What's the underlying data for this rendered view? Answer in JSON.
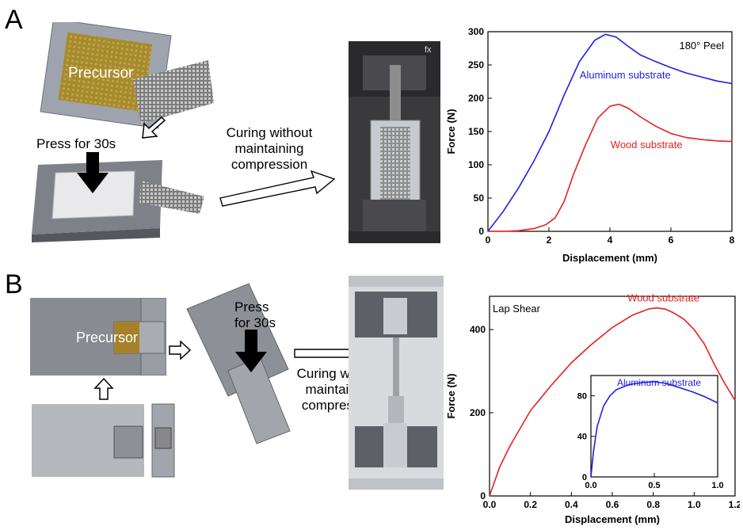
{
  "panel_a": {
    "letter": "A",
    "precursor_label": "Precursor",
    "press_label": "Press for 30s",
    "curing_line1": "Curing without",
    "curing_line2": "maintaining",
    "curing_line3": "compression",
    "photo_mark": "fx"
  },
  "panel_b": {
    "letter": "B",
    "precursor_label": "Precursor",
    "press_line1": "Press",
    "press_line2": "for 30s",
    "curing_line1": "Curing without",
    "curing_line2": "maintaining",
    "curing_line3": "compression"
  },
  "colors": {
    "blue": "#1f1fe6",
    "red": "#e62020"
  },
  "chart_data": [
    {
      "type": "line",
      "annotation": "180° Peel",
      "xlabel": "Displacement (mm)",
      "ylabel": "Force (N)",
      "xlim": [
        0,
        8
      ],
      "ylim": [
        0,
        300
      ],
      "xticks": [
        0,
        2,
        4,
        6,
        8
      ],
      "yticks": [
        0,
        50,
        100,
        150,
        200,
        250,
        300
      ],
      "series": [
        {
          "name": "Aluminum substrate",
          "color": "#1f1fe6",
          "x": [
            0,
            0.5,
            1,
            1.5,
            2,
            2.5,
            3,
            3.5,
            3.85,
            4.2,
            4.6,
            5,
            5.5,
            6,
            6.5,
            7,
            7.5,
            8
          ],
          "y": [
            0,
            30,
            65,
            105,
            150,
            205,
            255,
            287,
            296,
            292,
            278,
            265,
            255,
            246,
            238,
            232,
            226,
            222
          ]
        },
        {
          "name": "Wood substrate",
          "color": "#e62020",
          "x": [
            0,
            0.5,
            1,
            1.5,
            1.9,
            2.2,
            2.5,
            2.8,
            3.2,
            3.6,
            4,
            4.3,
            4.6,
            5,
            5.5,
            6,
            6.5,
            7,
            7.5,
            8
          ],
          "y": [
            0,
            0,
            1,
            4,
            10,
            20,
            45,
            85,
            130,
            170,
            188,
            191,
            185,
            172,
            158,
            147,
            141,
            138,
            136,
            135
          ]
        }
      ]
    },
    {
      "type": "line",
      "annotation": "Lap Shear",
      "xlabel": "Displacement (mm)",
      "ylabel": "Force (N)",
      "xlim": [
        0,
        1.2
      ],
      "ylim": [
        0,
        480
      ],
      "xticks": [
        "0.0",
        "0.2",
        "0.4",
        "0.6",
        "0.8",
        "1.0",
        "1.2"
      ],
      "yticks": [
        0,
        200,
        400
      ],
      "series": [
        {
          "name": "Wood substrate",
          "color": "#e62020",
          "x": [
            0,
            0.05,
            0.1,
            0.2,
            0.3,
            0.4,
            0.5,
            0.6,
            0.7,
            0.78,
            0.82,
            0.86,
            0.9,
            0.95,
            1.0,
            1.05,
            1.1,
            1.15,
            1.2
          ],
          "y": [
            0,
            70,
            120,
            205,
            265,
            320,
            365,
            405,
            435,
            450,
            452,
            449,
            440,
            425,
            400,
            365,
            315,
            270,
            230
          ]
        }
      ]
    },
    {
      "type": "line",
      "role": "inset",
      "xlim": [
        0,
        1.0
      ],
      "ylim": [
        0,
        100
      ],
      "xticks": [
        "0.0",
        "0.5",
        "1.0"
      ],
      "yticks": [
        0,
        40,
        80
      ],
      "series": [
        {
          "name": "Aluminum substrate",
          "color": "#1f1fe6",
          "x": [
            0,
            0.02,
            0.05,
            0.1,
            0.15,
            0.2,
            0.3,
            0.4,
            0.5,
            0.55,
            0.6,
            0.7,
            0.8,
            0.9,
            1.0
          ],
          "y": [
            0,
            25,
            50,
            70,
            80,
            86,
            91,
            93,
            94,
            93,
            92,
            88,
            84,
            79,
            73
          ]
        }
      ]
    }
  ]
}
